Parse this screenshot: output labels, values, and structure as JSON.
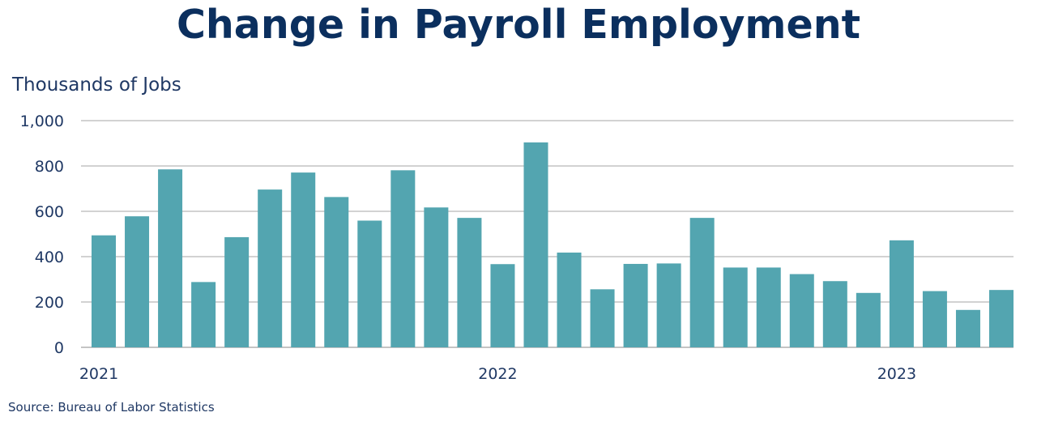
{
  "chart_data": {
    "type": "bar",
    "title": "Change in Payroll Employment",
    "ylabel": "Thousands of Jobs",
    "xlabel": "",
    "ylim": [
      0,
      1000
    ],
    "yticks": [
      0,
      200,
      400,
      600,
      800,
      1000
    ],
    "ytick_labels": [
      "0",
      "200",
      "400",
      "600",
      "800",
      "1,000"
    ],
    "grid": true,
    "bar_color": "#53a5b0",
    "categories": [
      "2021-01",
      "2021-02",
      "2021-03",
      "2021-04",
      "2021-05",
      "2021-06",
      "2021-07",
      "2021-08",
      "2021-09",
      "2021-10",
      "2021-11",
      "2021-12",
      "2022-01",
      "2022-02",
      "2022-03",
      "2022-04",
      "2022-05",
      "2022-06",
      "2022-07",
      "2022-08",
      "2022-09",
      "2022-10",
      "2022-11",
      "2022-12",
      "2023-01",
      "2023-02",
      "2023-03",
      "2023-04"
    ],
    "values": [
      494,
      578,
      785,
      288,
      486,
      696,
      771,
      663,
      559,
      781,
      617,
      571,
      367,
      904,
      418,
      256,
      368,
      370,
      571,
      352,
      352,
      323,
      292,
      240,
      472,
      248,
      165,
      253
    ],
    "x_tick_labels": [
      {
        "label": "2021",
        "category": "2021-01"
      },
      {
        "label": "2022",
        "category": "2022-01"
      },
      {
        "label": "2023",
        "category": "2023-01"
      }
    ]
  },
  "source": "Source:  Bureau of Labor Statistics"
}
